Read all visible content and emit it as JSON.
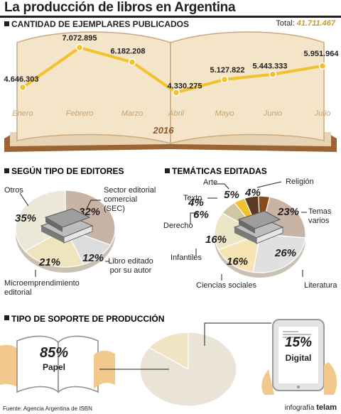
{
  "title": "La producción de libros en Argentina",
  "section1": {
    "heading": "CANTIDAD DE EJEMPLARES PUBLICADOS",
    "total_label": "Total:",
    "total_value": "41.711.467",
    "year": "2016"
  },
  "section2": {
    "heading": "SEGÚN TIPO DE EDITORES"
  },
  "section3": {
    "heading": "TEMÁTICAS EDITADAS"
  },
  "section4": {
    "heading": "TIPO DE SOPORTE DE PRODUCCIÓN"
  },
  "footer": {
    "source": "Fuente: Agencia Argentina de ISBN",
    "credit_prefix": "infografía",
    "credit_brand": "telam"
  },
  "colors": {
    "accent": "#f2c12e",
    "dark": "#231f20",
    "month": "#c8a471",
    "gold_text": "#c79a2a"
  },
  "chart_data": [
    {
      "type": "line",
      "title": "CANTIDAD DE EJEMPLARES PUBLICADOS",
      "categories": [
        "Enero",
        "Febrero",
        "Marzo",
        "Abril",
        "Mayo",
        "Junio",
        "Julio"
      ],
      "values": [
        4646303,
        7072895,
        6182208,
        4330275,
        5127822,
        5443333,
        5951964
      ],
      "value_labels": [
        "4.646.303",
        "7.072.895",
        "6.182.208",
        "4.330.275",
        "5.127.822",
        "5.443.333",
        "5.951.964"
      ]
    },
    {
      "type": "pie",
      "title": "SEGÚN TIPO DE EDITORES",
      "slices": [
        {
          "label": "Sector editorial comercial (SEC)",
          "value": 32,
          "text": "32%",
          "color": "#c8b4a4"
        },
        {
          "label": "Libro editado por su autor",
          "value": 12,
          "text": "12%",
          "color": "#dcdcdc"
        },
        {
          "label": "Microemprendimiento editorial",
          "value": 21,
          "text": "21%",
          "color": "#eee4bd"
        },
        {
          "label": "Otros",
          "value": 35,
          "text": "35%",
          "color": "#ebe8d8"
        }
      ]
    },
    {
      "type": "pie",
      "title": "TEMÁTICAS EDITADAS",
      "slices": [
        {
          "label": "Religión",
          "value": 4,
          "text": "4%",
          "color": "#8a4a1a"
        },
        {
          "label": "Temas varios",
          "value": 23,
          "text": "23%",
          "color": "#c8b4a4"
        },
        {
          "label": "Literatura",
          "value": 26,
          "text": "26%",
          "color": "#e0e0e0"
        },
        {
          "label": "Ciencias sociales",
          "value": 16,
          "text": "16%",
          "color": "#f7e4b4"
        },
        {
          "label": "Infantiles",
          "value": 16,
          "text": "16%",
          "color": "#ebe5c8"
        },
        {
          "label": "Derecho",
          "value": 6,
          "text": "6%",
          "color": "#cfc7a1"
        },
        {
          "label": "Texto",
          "value": 4,
          "text": "4%",
          "color": "#f2c12e"
        },
        {
          "label": "Arte",
          "value": 5,
          "text": "5%",
          "color": "#5b3923"
        }
      ]
    },
    {
      "type": "pie",
      "title": "TIPO DE SOPORTE DE PRODUCCIÓN",
      "slices": [
        {
          "label": "Papel",
          "value": 85,
          "text": "85%",
          "color": "#e9e4d7"
        },
        {
          "label": "Digital",
          "value": 15,
          "text": "15%",
          "color": "#f1e4c4"
        }
      ]
    }
  ]
}
